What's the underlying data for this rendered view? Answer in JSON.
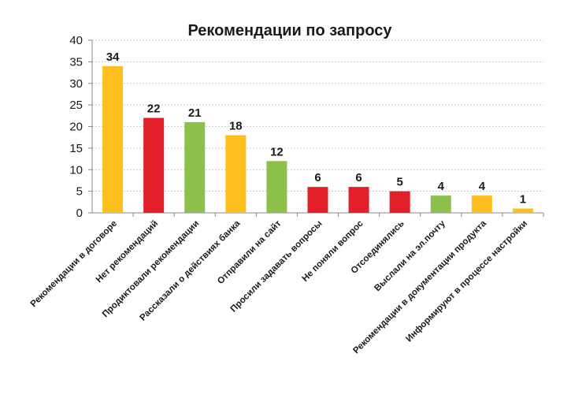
{
  "chart_data": {
    "type": "bar",
    "title": "Рекомендации по запросу",
    "xlabel": "",
    "ylabel": "",
    "ylim": [
      0,
      40
    ],
    "yticks": [
      0,
      5,
      10,
      15,
      20,
      25,
      30,
      35,
      40
    ],
    "grid": true,
    "legend": "none",
    "categories": [
      "Рекомендации в договоре",
      "Нет рекомендаций",
      "Продиктовали рекомендации",
      "Рассказали о действиях банка",
      "Отправили на сайт",
      "Просили задавать вопросы",
      "Не поняли вопрос",
      "Отсоединялись",
      "Выслали на эл.почту",
      "Рекомендации в документации продукта",
      "Информируют в процессе настройки"
    ],
    "values": [
      34,
      22,
      21,
      18,
      12,
      6,
      6,
      5,
      4,
      4,
      1
    ],
    "colors": [
      "#FFC01F",
      "#E3202A",
      "#8DBF4B",
      "#FFC01F",
      "#8DBF4B",
      "#E3202A",
      "#E3202A",
      "#E3202A",
      "#8DBF4B",
      "#FFC01F",
      "#FFC01F"
    ]
  }
}
